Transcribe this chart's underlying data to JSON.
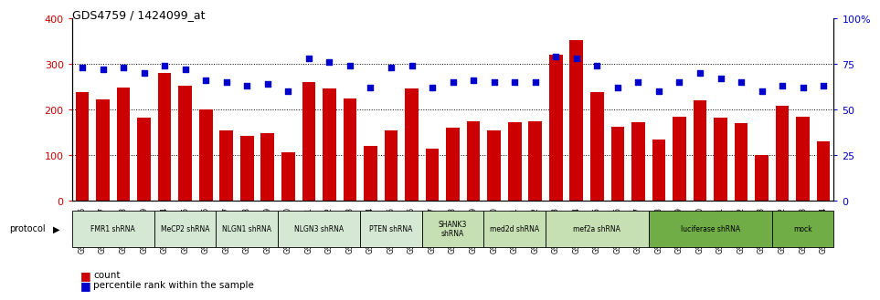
{
  "title": "GDS4759 / 1424099_at",
  "samples": [
    "GSM1145756",
    "GSM1145757",
    "GSM1145758",
    "GSM1145759",
    "GSM1145764",
    "GSM1145765",
    "GSM1145766",
    "GSM1145767",
    "GSM1145768",
    "GSM1145769",
    "GSM1145770",
    "GSM1145771",
    "GSM1145772",
    "GSM1145773",
    "GSM1145774",
    "GSM1145775",
    "GSM1145776",
    "GSM1145777",
    "GSM1145778",
    "GSM1145779",
    "GSM1145780",
    "GSM1145781",
    "GSM1145782",
    "GSM1145783",
    "GSM1145784",
    "GSM1145785",
    "GSM1145786",
    "GSM1145787",
    "GSM1145788",
    "GSM1145789",
    "GSM1145760",
    "GSM1145761",
    "GSM1145762",
    "GSM1145763",
    "GSM1145942",
    "GSM1145943",
    "GSM1145944"
  ],
  "counts": [
    238,
    222,
    248,
    183,
    280,
    253,
    200,
    155,
    142,
    148,
    107,
    261,
    246,
    224,
    120,
    154,
    247,
    115,
    160,
    175,
    155,
    172,
    175,
    320,
    353,
    238,
    163,
    173,
    135,
    185,
    220,
    183,
    170,
    100,
    208,
    185,
    130
  ],
  "percentiles": [
    73,
    72,
    73,
    70,
    74,
    72,
    66,
    65,
    63,
    64,
    60,
    78,
    76,
    74,
    62,
    73,
    74,
    62,
    65,
    66,
    65,
    65,
    65,
    79,
    78,
    74,
    62,
    65,
    60,
    65,
    70,
    67,
    65,
    60,
    63,
    62,
    63
  ],
  "protocol_groups": [
    {
      "label": "FMR1 shRNA",
      "start": 0,
      "end": 3,
      "color": "#d5e8d4"
    },
    {
      "label": "MeCP2 shRNA",
      "start": 4,
      "end": 6,
      "color": "#d5e8d4"
    },
    {
      "label": "NLGN1 shRNA",
      "start": 7,
      "end": 9,
      "color": "#d5e8d4"
    },
    {
      "label": "NLGN3 shRNA",
      "start": 10,
      "end": 13,
      "color": "#d5e8d4"
    },
    {
      "label": "PTEN shRNA",
      "start": 14,
      "end": 16,
      "color": "#d5e8d4"
    },
    {
      "label": "SHANK3\nshRNA",
      "start": 17,
      "end": 19,
      "color": "#c6e0b4"
    },
    {
      "label": "med2d shRNA",
      "start": 20,
      "end": 22,
      "color": "#c6e0b4"
    },
    {
      "label": "mef2a shRNA",
      "start": 23,
      "end": 27,
      "color": "#c6e0b4"
    },
    {
      "label": "luciferase shRNA",
      "start": 28,
      "end": 33,
      "color": "#70ad47"
    },
    {
      "label": "mock",
      "start": 34,
      "end": 36,
      "color": "#70ad47"
    }
  ],
  "bar_color": "#cc0000",
  "dot_color": "#0000cc",
  "ylim_left": [
    0,
    400
  ],
  "ylim_right": [
    0,
    100
  ],
  "yticks_left": [
    0,
    100,
    200,
    300,
    400
  ],
  "yticks_right": [
    0,
    25,
    50,
    75,
    100
  ],
  "background_color": "#ffffff",
  "grid_color": "#000000"
}
